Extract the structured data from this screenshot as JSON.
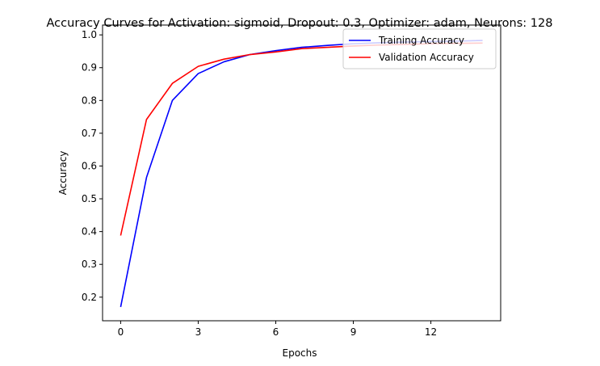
{
  "chart_data": {
    "type": "line",
    "title": "Accuracy Curves for Activation: sigmoid, Dropout: 0.3, Optimizer: adam, Neurons: 128",
    "xlabel": "Epochs",
    "ylabel": "Accuracy",
    "xlim": [
      -0.7,
      14.7
    ],
    "ylim": [
      0.128,
      1.03
    ],
    "xticks": [
      0,
      3,
      6,
      9,
      12
    ],
    "yticks": [
      0.2,
      0.3,
      0.4,
      0.5,
      0.6,
      0.7,
      0.8,
      0.9,
      1.0
    ],
    "ytick_labels": [
      "0.2",
      "0.3",
      "0.4",
      "0.5",
      "0.6",
      "0.7",
      "0.8",
      "0.9",
      "1.0"
    ],
    "grid": false,
    "legend_position": "upper right",
    "x": [
      0,
      1,
      2,
      3,
      4,
      5,
      6,
      7,
      8,
      9,
      10,
      11,
      12,
      13,
      14
    ],
    "series": [
      {
        "name": "Training Accuracy",
        "color": "#0000ff",
        "values": [
          0.17,
          0.565,
          0.8,
          0.882,
          0.918,
          0.94,
          0.952,
          0.962,
          0.968,
          0.973,
          0.976,
          0.978,
          0.98,
          0.981,
          0.983
        ]
      },
      {
        "name": "Validation Accuracy",
        "color": "#ff0000",
        "values": [
          0.388,
          0.742,
          0.852,
          0.904,
          0.926,
          0.94,
          0.948,
          0.958,
          0.962,
          0.966,
          0.969,
          0.971,
          0.973,
          0.974,
          0.975
        ]
      }
    ]
  }
}
